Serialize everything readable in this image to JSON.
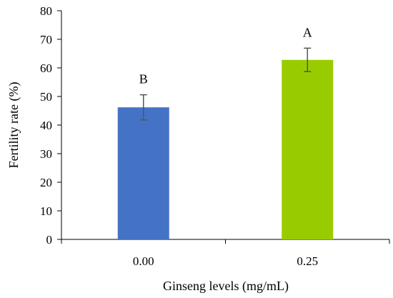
{
  "chart_data": {
    "type": "bar",
    "categories": [
      "0.00",
      "0.25"
    ],
    "values": [
      46.2,
      62.8
    ],
    "errors": [
      4.4,
      4.1
    ],
    "significance_letters": [
      "B",
      "A"
    ],
    "colors": [
      "#4472c4",
      "#99cc00"
    ],
    "xlabel": "Ginseng levels (mg/mL)",
    "ylabel": "Fertility rate (%)",
    "ylim": [
      0,
      80
    ],
    "yticks": [
      "0",
      "10",
      "20",
      "30",
      "40",
      "50",
      "60",
      "70",
      "80"
    ],
    "grid": false,
    "legend": "none"
  }
}
